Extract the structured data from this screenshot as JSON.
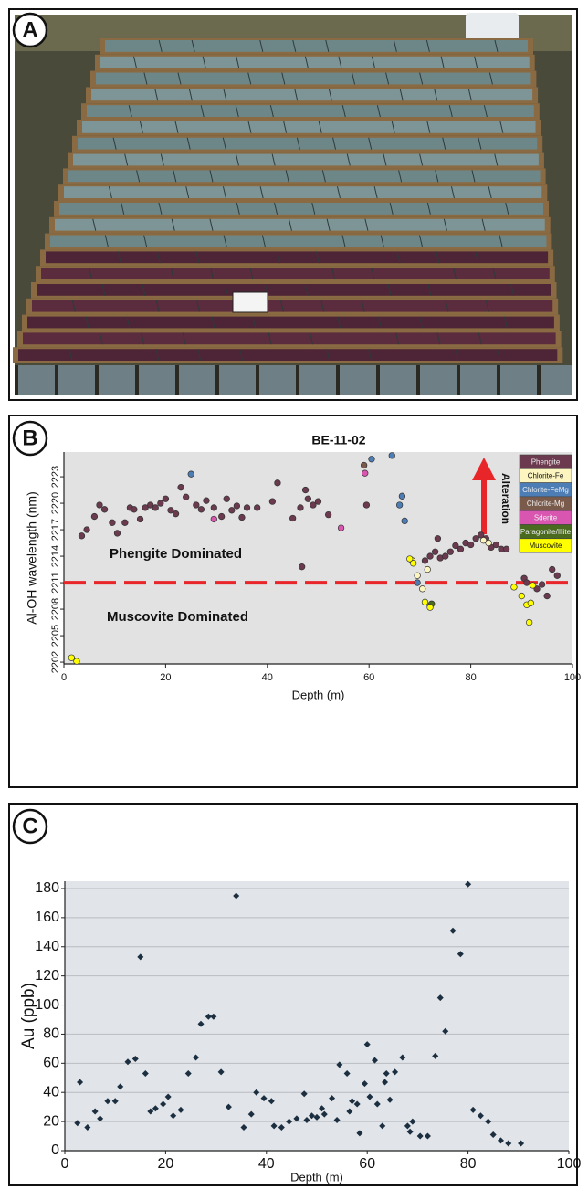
{
  "panel_labels": [
    "A",
    "B",
    "C"
  ],
  "chart_data": [
    {
      "type": "scatter",
      "title": "BE-11-02",
      "x_label": "Depth (m)",
      "y_label": "Al-OH wavelength (nm)",
      "xlim": [
        0,
        100
      ],
      "xticks": [
        0,
        20,
        40,
        60,
        80,
        100
      ],
      "ylim": [
        2201.8,
        2225.8
      ],
      "yticks": [
        2202,
        2205,
        2208,
        2211,
        2214,
        2217,
        2220,
        2223
      ],
      "reference_line": {
        "value": 2211,
        "color": "#e8262a"
      },
      "annotations": [
        "Phengite Dominated",
        "Muscovite Dominated",
        "Alteration"
      ],
      "legend": "upper right",
      "series": [
        {
          "name": "Phengite",
          "color": "#6b3a4e",
          "x": [
            3.5,
            4.5,
            6,
            7,
            8,
            9.5,
            10.5,
            12,
            13,
            13.8,
            15,
            16,
            17,
            18,
            19,
            20,
            21,
            22,
            23,
            24,
            26,
            27,
            28,
            29.5,
            31,
            32,
            33,
            34,
            35,
            36,
            38,
            41,
            42,
            45,
            46.5,
            46.8,
            47.5,
            48,
            49,
            50,
            52,
            59.5,
            71,
            72,
            73,
            73.5,
            74,
            75,
            76,
            77,
            78,
            79,
            80,
            81,
            82,
            83,
            84,
            85,
            86,
            87,
            90.5,
            91,
            93,
            94,
            95,
            96,
            97
          ],
          "values": [
            2216.3,
            2217,
            2218.5,
            2219.8,
            2219.3,
            2217.8,
            2216.6,
            2217.8,
            2219.5,
            2219.3,
            2218.2,
            2219.5,
            2219.8,
            2219.5,
            2220,
            2220.5,
            2219.2,
            2218.8,
            2221.8,
            2220.7,
            2219.8,
            2219.3,
            2220.3,
            2219.5,
            2218.5,
            2220.5,
            2219.2,
            2219.7,
            2218.4,
            2219.5,
            2219.5,
            2220.2,
            2222.3,
            2218.3,
            2219.5,
            2212.8,
            2221.5,
            2220.5,
            2219.8,
            2220.2,
            2218.7,
            2219.8,
            2213.5,
            2214,
            2214.5,
            2216,
            2213.8,
            2214,
            2214.5,
            2215.2,
            2214.8,
            2215.5,
            2215.3,
            2216,
            2216.4,
            2216,
            2215,
            2215.3,
            2214.8,
            2214.8,
            2211.5,
            2211,
            2210.3,
            2210.8,
            2209.5,
            2212.5,
            2211.8
          ]
        },
        {
          "name": "Chlorite-Fe",
          "color": "#fdf5c0",
          "x": [
            68.5,
            69.5,
            70.5,
            71.5,
            82.5,
            83.5
          ],
          "values": [
            2213.5,
            2211.8,
            2210.3,
            2212.5,
            2215.8,
            2215.5
          ]
        },
        {
          "name": "Chlorite-FeMg",
          "color": "#4d7db5",
          "x": [
            25,
            60.5,
            64.5,
            66,
            66.5,
            67,
            69.5
          ],
          "values": [
            2223.3,
            2225,
            2225.4,
            2219.8,
            2220.8,
            2218,
            2211
          ]
        },
        {
          "name": "Chlorite-Mg",
          "color": "#7a5a4a",
          "x": [
            59
          ],
          "values": [
            2224.3
          ]
        },
        {
          "name": "Sderite",
          "color": "#d855b0",
          "x": [
            29.5,
            54.5,
            59.2
          ],
          "values": [
            2218.2,
            2217.2,
            2223.4
          ]
        },
        {
          "name": "Paragonite/Illite",
          "color": "#4a6a20",
          "x": [
            72,
            72.3
          ],
          "values": [
            2208.3,
            2208.6
          ]
        },
        {
          "name": "Muscovite",
          "color": "#ffff00",
          "x": [
            1.5,
            2.5,
            68,
            68.7,
            71,
            72,
            88.5,
            90,
            91,
            91.5,
            91.8,
            92.2
          ],
          "values": [
            2202.5,
            2202.1,
            2213.7,
            2213.2,
            2208.8,
            2208.2,
            2210.5,
            2209.5,
            2208.5,
            2206.5,
            2208.7,
            2210.7
          ]
        }
      ]
    },
    {
      "type": "scatter",
      "x_label": "Depth (m)",
      "y_label": "Au (ppb)",
      "xlim": [
        0,
        100
      ],
      "xticks": [
        0,
        20,
        40,
        60,
        80,
        100
      ],
      "ylim": [
        0,
        185
      ],
      "yticks": [
        0,
        20,
        40,
        60,
        80,
        100,
        120,
        140,
        160,
        180
      ],
      "grid": true,
      "series": [
        {
          "color": "#1c2f40",
          "x": [
            2.5,
            3,
            4.5,
            6,
            7,
            8.5,
            10,
            11,
            12.5,
            14,
            15,
            16,
            17,
            18,
            19.5,
            20.5,
            21.5,
            23,
            24.5,
            26,
            27,
            28.5,
            29.5,
            31,
            32.5,
            34,
            35.5,
            37,
            38,
            39.5,
            41,
            41.5,
            43,
            44.5,
            46,
            47.5,
            48,
            49,
            50,
            51,
            51.5,
            53,
            54,
            54.5,
            56,
            56.5,
            57,
            58,
            58.5,
            59.5,
            60,
            60.5,
            61.5,
            62,
            63,
            63.5,
            63.8,
            64.5,
            65.5,
            67,
            68,
            68.5,
            69,
            70.5,
            72,
            73.5,
            74.5,
            75.5,
            77,
            78.5,
            80,
            81,
            82.5,
            84,
            85,
            86.5,
            88,
            90.5
          ],
          "values": [
            19,
            47,
            16,
            27,
            22,
            34,
            34,
            44,
            61,
            63,
            133,
            53,
            27,
            29,
            32,
            37,
            24,
            28,
            53,
            64,
            87,
            92,
            92,
            54,
            30,
            175,
            16,
            25,
            40,
            36,
            34,
            17,
            16,
            20,
            22,
            39,
            21,
            24,
            23,
            29,
            25,
            36,
            21,
            59,
            53,
            27,
            34,
            32,
            12,
            46,
            73,
            37,
            62,
            32,
            17,
            47,
            53,
            35,
            54,
            64,
            17,
            13,
            20,
            10,
            10,
            65,
            105,
            82,
            151,
            135,
            183,
            28,
            24,
            20,
            11,
            7,
            5,
            5
          ]
        }
      ]
    }
  ]
}
